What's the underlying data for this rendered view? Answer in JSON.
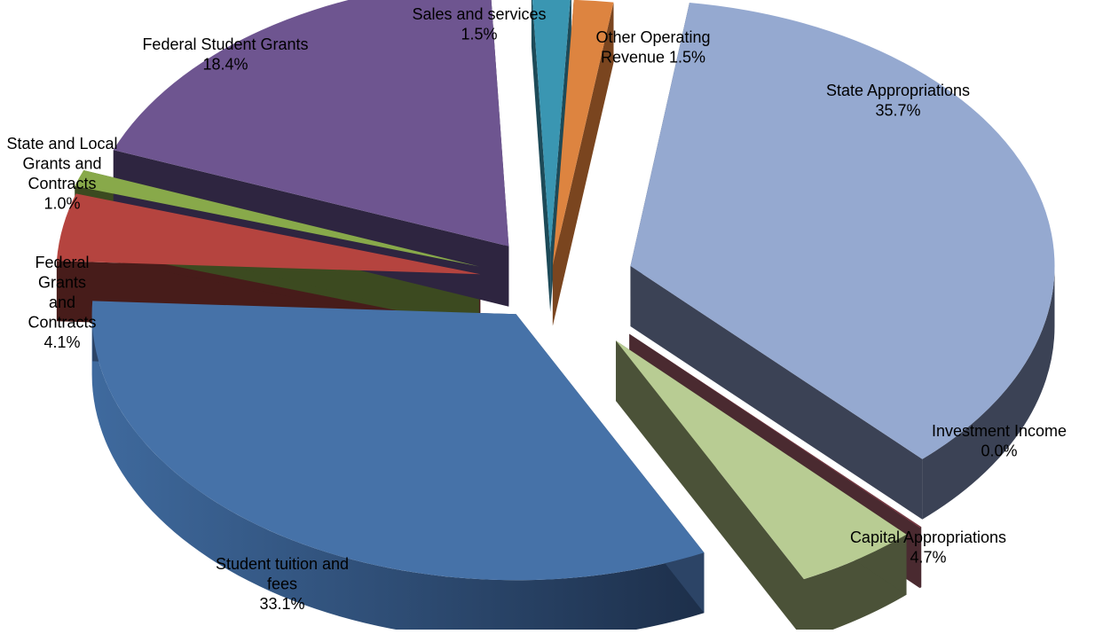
{
  "chart_data": {
    "type": "pie",
    "title": "",
    "categories": [
      "State Appropriations",
      "Investment Income",
      "Capital Appropriations",
      "Student tuition and fees",
      "Federal Grants and Contracts",
      "State and Local Grants and Contracts",
      "Federal Student Grants",
      "Sales and services",
      "Other Operating Revenue"
    ],
    "values": [
      35.7,
      0.0,
      4.7,
      33.1,
      4.1,
      1.0,
      18.4,
      1.5,
      1.5
    ],
    "labels": [
      [
        "State Appropriations",
        "35.7%"
      ],
      [
        "Investment Income",
        "0.0%"
      ],
      [
        "Capital Appropriations",
        "4.7%"
      ],
      [
        "Student tuition and",
        "fees",
        "33.1%"
      ],
      [
        "Federal",
        "Grants",
        "and",
        "Contracts",
        "4.1%"
      ],
      [
        "State and Local",
        "Grants and",
        "Contracts",
        "1.0%"
      ],
      [
        "Federal Student Grants",
        "18.4%"
      ],
      [
        "Sales and services",
        "1.5%"
      ],
      [
        "Other Operating",
        "Revenue 1.5%"
      ]
    ],
    "colors": [
      "#95a9d0",
      "#7a3b45",
      "#b8cc93",
      "#4672a8",
      "#b5443f",
      "#88a94a",
      "#6e5590",
      "#3a96b2",
      "#dd8440"
    ],
    "side_colors": [
      "#3b4255",
      "#4a2a30",
      "#4b5238",
      "#2c4466",
      "#471c1a",
      "#3c4a20",
      "#2e2540",
      "#1d4a58",
      "#7a451f"
    ],
    "legend": "none",
    "exploded": true
  }
}
